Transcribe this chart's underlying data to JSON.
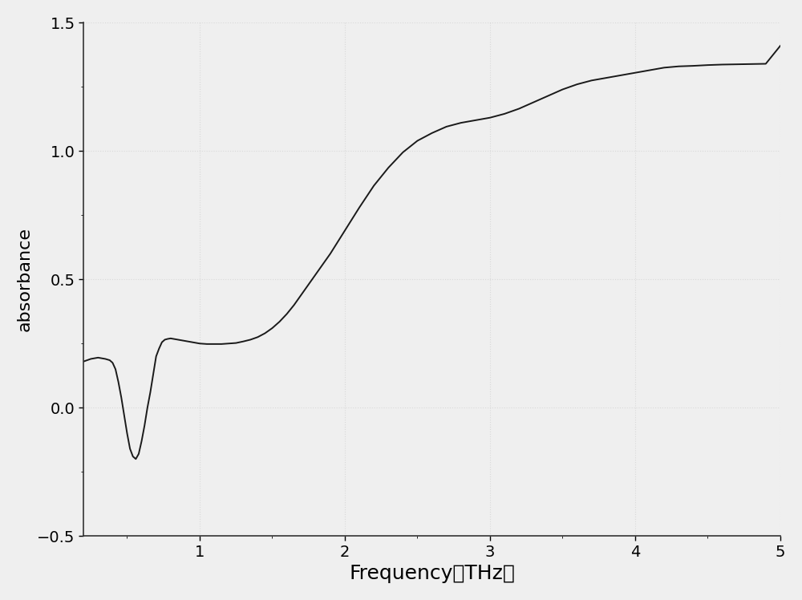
{
  "title": "",
  "xlabel": "Frequency（THz）",
  "ylabel": "absorbance",
  "xlim": [
    0.2,
    5.0
  ],
  "ylim": [
    -0.5,
    1.5
  ],
  "xticks": [
    1,
    2,
    3,
    4,
    5
  ],
  "yticks": [
    -0.5,
    0.0,
    0.5,
    1.0,
    1.5
  ],
  "line_color": "#1a1a1a",
  "line_width": 1.4,
  "background_color": "#f0f0f0",
  "grid_color": "#d0d0d0",
  "xlabel_fontsize": 18,
  "ylabel_fontsize": 16,
  "tick_fontsize": 14,
  "x_data": [
    0.2,
    0.25,
    0.3,
    0.35,
    0.38,
    0.4,
    0.42,
    0.44,
    0.46,
    0.48,
    0.5,
    0.52,
    0.54,
    0.56,
    0.58,
    0.6,
    0.62,
    0.64,
    0.66,
    0.68,
    0.7,
    0.72,
    0.74,
    0.76,
    0.78,
    0.8,
    0.82,
    0.85,
    0.88,
    0.9,
    0.92,
    0.95,
    0.98,
    1.0,
    1.05,
    1.1,
    1.15,
    1.2,
    1.25,
    1.3,
    1.35,
    1.4,
    1.45,
    1.5,
    1.55,
    1.6,
    1.65,
    1.7,
    1.75,
    1.8,
    1.85,
    1.9,
    1.95,
    2.0,
    2.1,
    2.2,
    2.3,
    2.4,
    2.5,
    2.6,
    2.7,
    2.8,
    2.9,
    3.0,
    3.1,
    3.2,
    3.3,
    3.4,
    3.5,
    3.6,
    3.7,
    3.8,
    3.9,
    4.0,
    4.1,
    4.2,
    4.3,
    4.4,
    4.5,
    4.6,
    4.7,
    4.8,
    4.9,
    5.0
  ],
  "y_data": [
    0.18,
    0.19,
    0.195,
    0.19,
    0.185,
    0.175,
    0.15,
    0.1,
    0.04,
    -0.03,
    -0.1,
    -0.16,
    -0.19,
    -0.2,
    -0.18,
    -0.13,
    -0.07,
    0.0,
    0.06,
    0.13,
    0.2,
    0.23,
    0.255,
    0.265,
    0.268,
    0.27,
    0.268,
    0.265,
    0.262,
    0.26,
    0.258,
    0.255,
    0.252,
    0.25,
    0.248,
    0.248,
    0.248,
    0.25,
    0.252,
    0.258,
    0.265,
    0.275,
    0.29,
    0.31,
    0.335,
    0.365,
    0.4,
    0.44,
    0.48,
    0.52,
    0.56,
    0.6,
    0.645,
    0.69,
    0.78,
    0.865,
    0.935,
    0.995,
    1.04,
    1.07,
    1.095,
    1.11,
    1.12,
    1.13,
    1.145,
    1.165,
    1.19,
    1.215,
    1.24,
    1.26,
    1.275,
    1.285,
    1.295,
    1.305,
    1.315,
    1.325,
    1.33,
    1.332,
    1.335,
    1.337,
    1.338,
    1.339,
    1.34,
    1.41
  ]
}
